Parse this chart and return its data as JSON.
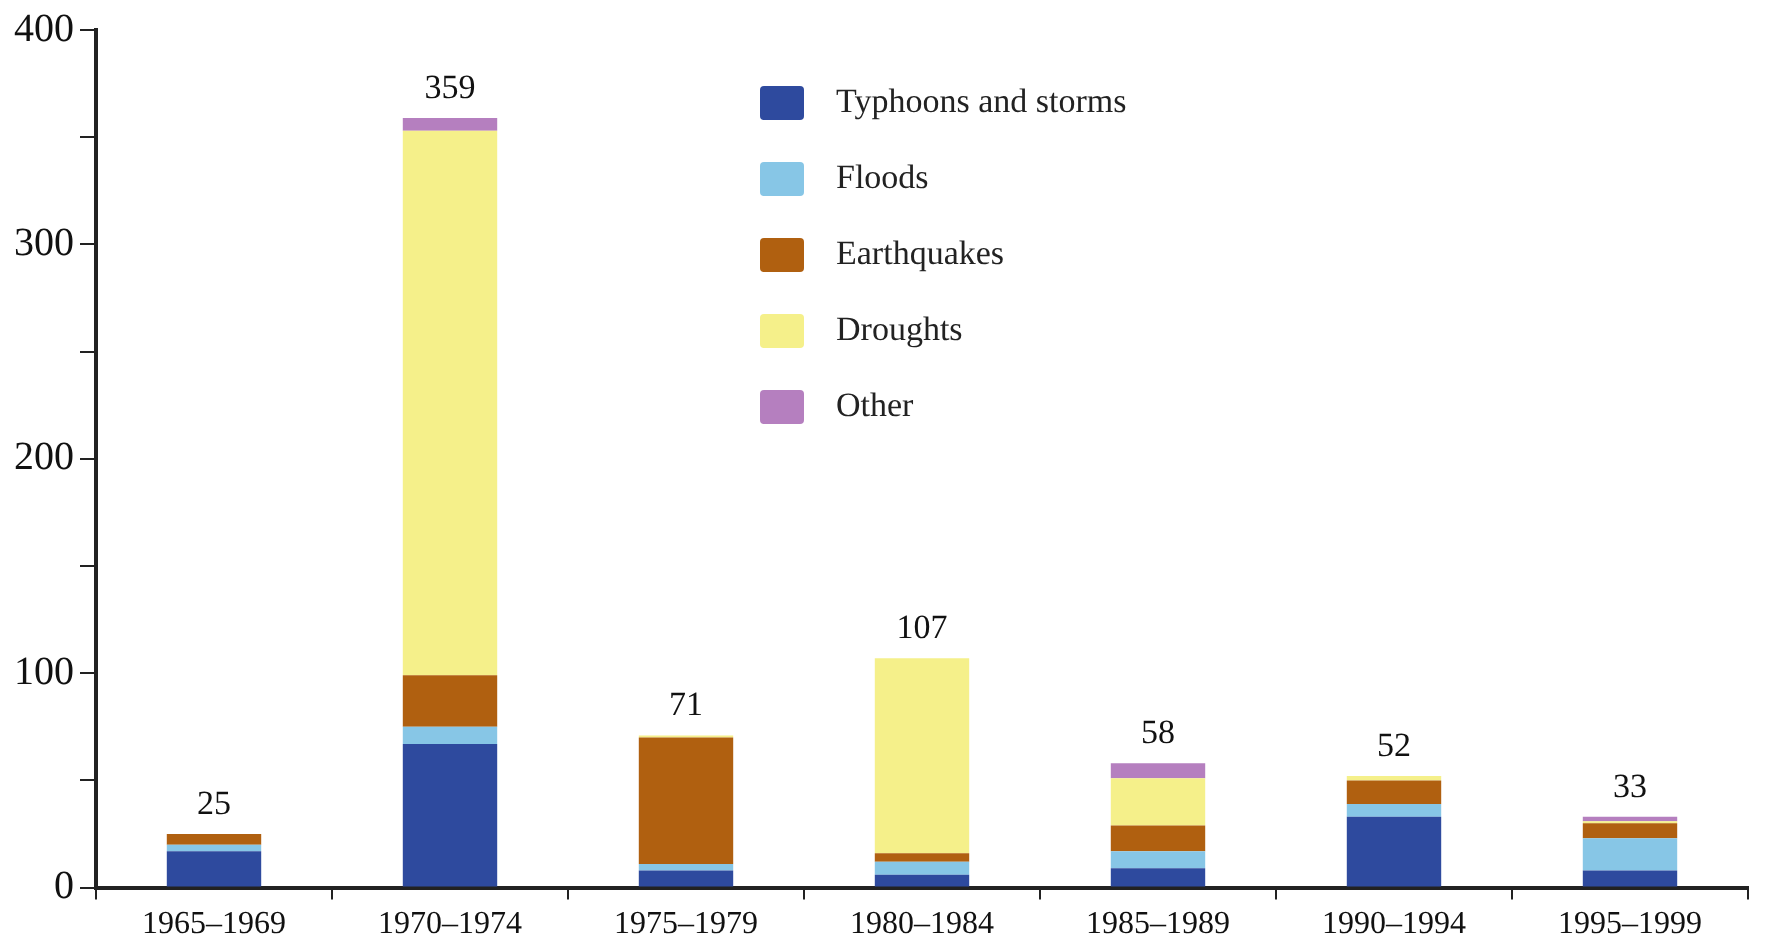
{
  "chart_data": {
    "type": "bar",
    "stacked": true,
    "categories": [
      "1965–1969",
      "1970–1974",
      "1975–1979",
      "1980–1984",
      "1985–1989",
      "1990–1994",
      "1995–1999"
    ],
    "series": [
      {
        "name": "Typhoons and storms",
        "color": "#2e4a9e",
        "values": [
          17,
          67,
          8,
          6,
          9,
          33,
          8
        ]
      },
      {
        "name": "Floods",
        "color": "#87c6e6",
        "values": [
          3,
          8,
          3,
          6,
          8,
          6,
          15
        ]
      },
      {
        "name": "Earthquakes",
        "color": "#b06010",
        "values": [
          5,
          24,
          59,
          4,
          12,
          11,
          7
        ]
      },
      {
        "name": "Droughts",
        "color": "#f5f08a",
        "values": [
          0,
          254,
          1,
          91,
          22,
          2,
          1
        ]
      },
      {
        "name": "Other",
        "color": "#b57fbf",
        "values": [
          0,
          6,
          0,
          0,
          7,
          0,
          2
        ]
      }
    ],
    "totals": [
      "25",
      "359",
      "71",
      "107",
      "58",
      "52",
      "33"
    ],
    "ylim": [
      0,
      400
    ],
    "yticks": [
      0,
      {
        "value": 50,
        "label": null
      },
      100,
      {
        "value": 150,
        "label": null
      },
      200,
      {
        "value": 250,
        "label": null
      },
      300,
      {
        "value": 350,
        "label": null
      },
      400
    ],
    "grid": false,
    "legend": "top"
  }
}
